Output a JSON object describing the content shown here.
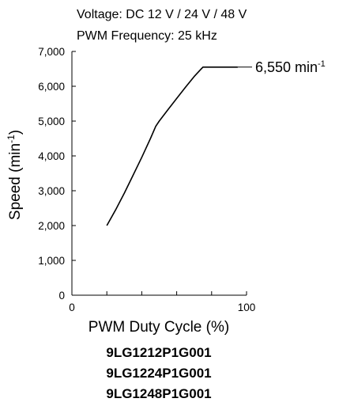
{
  "conditions": [
    "Voltage: DC 12 V / 24 V / 48 V",
    "PWM Frequency: 25 kHz"
  ],
  "models": [
    "9LG1212P1G001",
    "9LG1224P1G001",
    "9LG1248P1G001"
  ],
  "annotation": {
    "value_text": "6,550 min",
    "sup": "-1",
    "target_x": 95,
    "target_y": 6550
  },
  "chart_data": {
    "type": "line",
    "xlabel": "PWM Duty Cycle (%)",
    "ylabel_text": "Speed (min",
    "ylabel_sup": "-1",
    "ylabel_close": ")",
    "xlim": [
      0,
      100
    ],
    "ylim": [
      0,
      7000
    ],
    "x_ticks": [
      0,
      20,
      40,
      60,
      80,
      100
    ],
    "x_tick_labels": [
      {
        "value": 0,
        "label": "0"
      },
      {
        "value": 100,
        "label": "100"
      }
    ],
    "y_ticks": [
      0,
      1000,
      2000,
      3000,
      4000,
      5000,
      6000,
      7000
    ],
    "y_tick_labels": [
      "0",
      "1,000",
      "2,000",
      "3,000",
      "4,000",
      "5,000",
      "6,000",
      "7,000"
    ],
    "series": [
      {
        "x": [
          20,
          25,
          30,
          35,
          40,
          45,
          48,
          50,
          55,
          60,
          65,
          70,
          75,
          80,
          85,
          90,
          91,
          95
        ],
        "y": [
          2000,
          2450,
          2930,
          3440,
          3960,
          4500,
          4850,
          5000,
          5330,
          5650,
          5970,
          6280,
          6550,
          6550,
          6550,
          6550,
          6550,
          6550
        ]
      }
    ],
    "grid": false
  }
}
